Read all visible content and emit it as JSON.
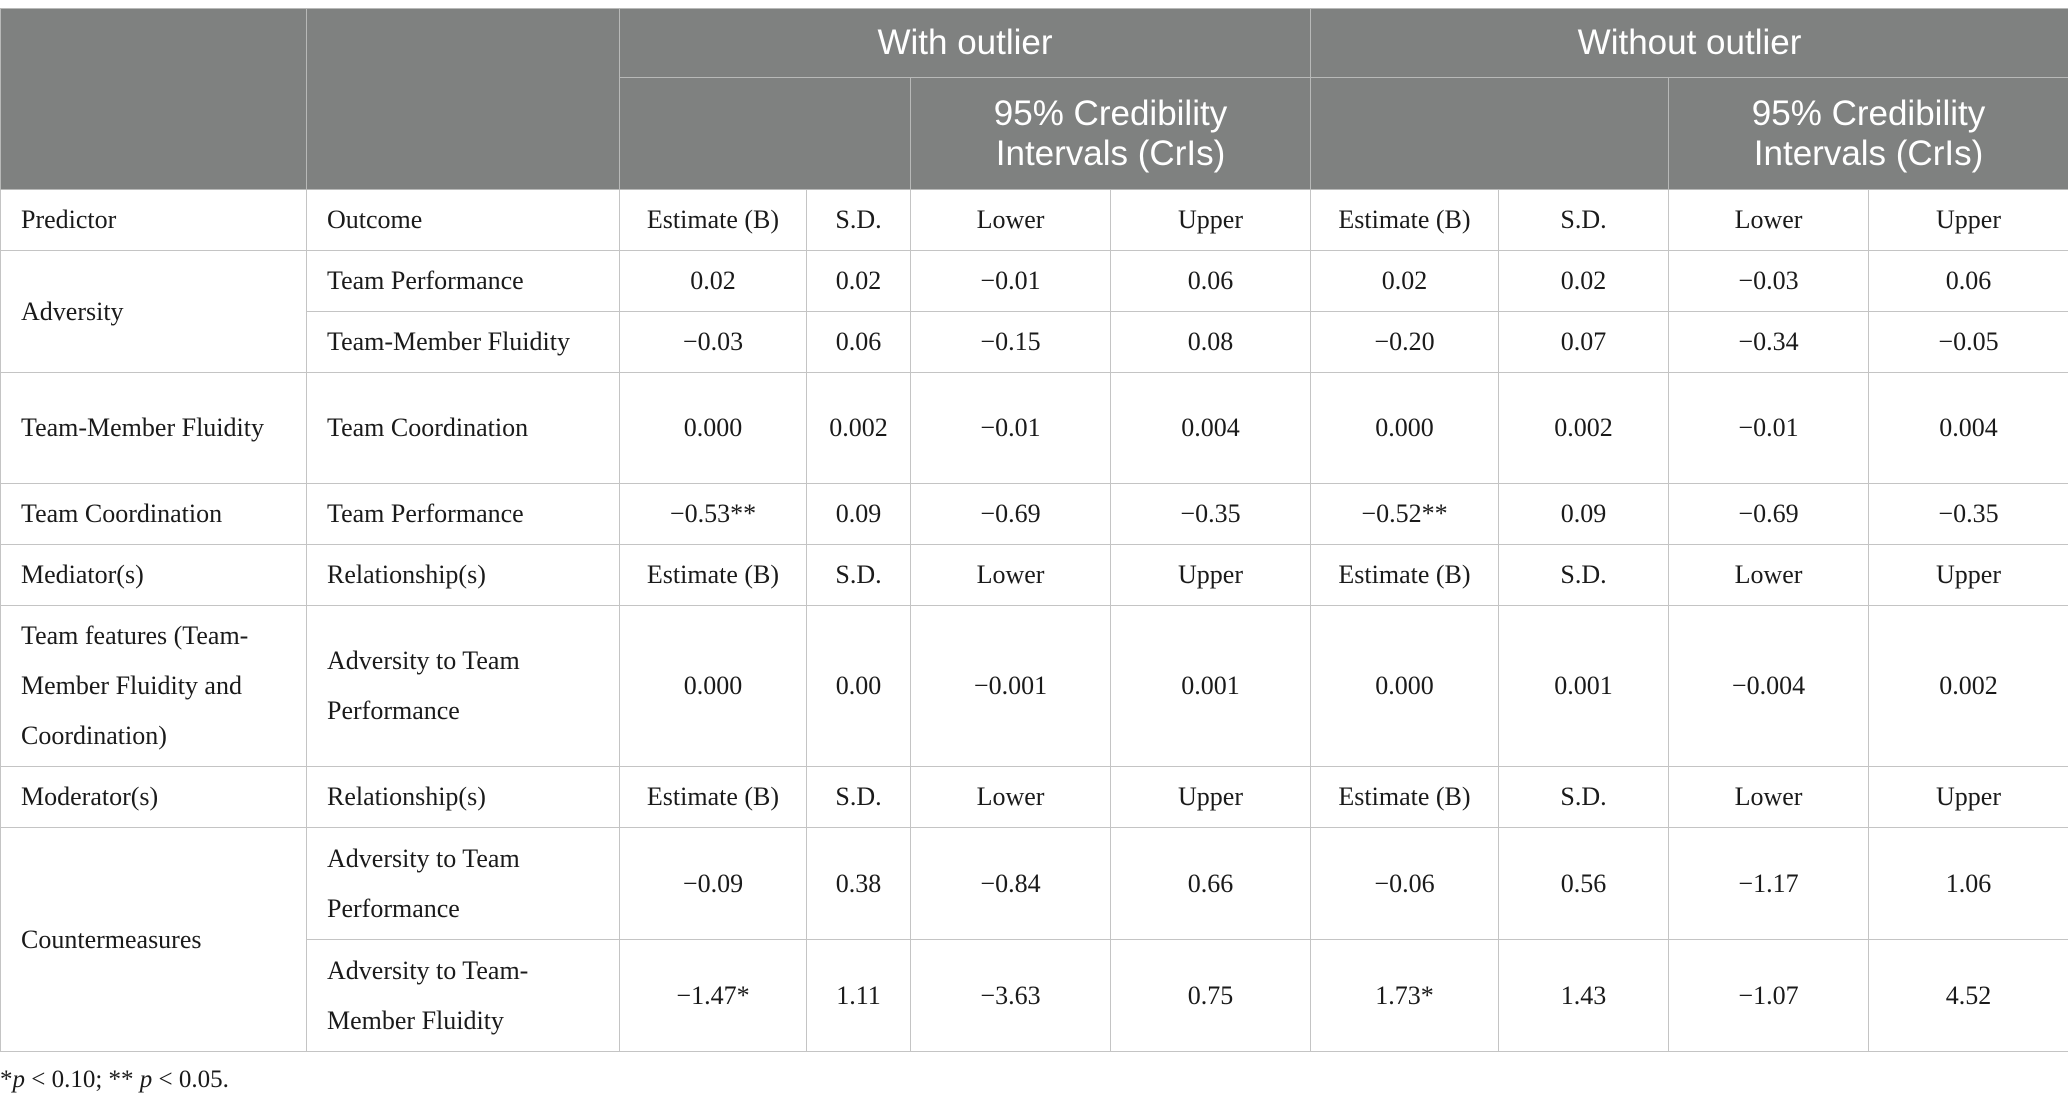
{
  "header": {
    "group_with": "With outlier",
    "group_without": "Without outlier",
    "cri_with": "95% Credibility Intervals (CrIs)",
    "cri_without": "95% Credibility Intervals (CrIs)"
  },
  "rows": [
    {
      "c": [
        "Predictor",
        "Outcome",
        "Estimate (B)",
        "S.D.",
        "Lower",
        "Upper",
        "Estimate (B)",
        "S.D.",
        "Lower",
        "Upper"
      ]
    },
    {
      "c": [
        "Adversity",
        "Team Performance",
        "0.02",
        "0.02",
        "−0.01",
        "0.06",
        "0.02",
        "0.02",
        "−0.03",
        "0.06"
      ]
    },
    {
      "c": [
        "Team-Member Fluidity",
        "−0.03",
        "0.06",
        "−0.15",
        "0.08",
        "−0.20",
        "0.07",
        "−0.34",
        "−0.05"
      ]
    },
    {
      "c": [
        "Team-Member Fluidity",
        "Team Coordination",
        "0.000",
        "0.002",
        "−0.01",
        "0.004",
        "0.000",
        "0.002",
        "−0.01",
        "0.004"
      ]
    },
    {
      "c": [
        "Team Coordination",
        "Team Performance",
        "−0.53**",
        "0.09",
        "−0.69",
        "−0.35",
        "−0.52**",
        "0.09",
        "−0.69",
        "−0.35"
      ]
    },
    {
      "c": [
        "Mediator(s)",
        "Relationship(s)",
        "Estimate (B)",
        "S.D.",
        "Lower",
        "Upper",
        "Estimate (B)",
        "S.D.",
        "Lower",
        "Upper"
      ]
    },
    {
      "c": [
        "Team features (Team-Member Fluidity and Coordination)",
        "Adversity to Team Performance",
        "0.000",
        "0.00",
        "−0.001",
        "0.001",
        "0.000",
        "0.001",
        "−0.004",
        "0.002"
      ]
    },
    {
      "c": [
        "Moderator(s)",
        "Relationship(s)",
        "Estimate (B)",
        "S.D.",
        "Lower",
        "Upper",
        "Estimate (B)",
        "S.D.",
        "Lower",
        "Upper"
      ]
    },
    {
      "c": [
        "Countermeasures",
        "Adversity to Team Performance",
        "−0.09",
        "0.38",
        "−0.84",
        "0.66",
        "−0.06",
        "0.56",
        "−1.17",
        "1.06"
      ]
    },
    {
      "c": [
        "Adversity to Team-Member Fluidity",
        "−1.47*",
        "1.11",
        "−3.63",
        "0.75",
        "1.73*",
        "1.43",
        "−1.07",
        "4.52"
      ]
    }
  ],
  "footnote": {
    "p1": "p",
    "t1": " < 0.10; ** ",
    "p2": "p",
    "t2": " < 0.05.",
    "star": "*"
  }
}
